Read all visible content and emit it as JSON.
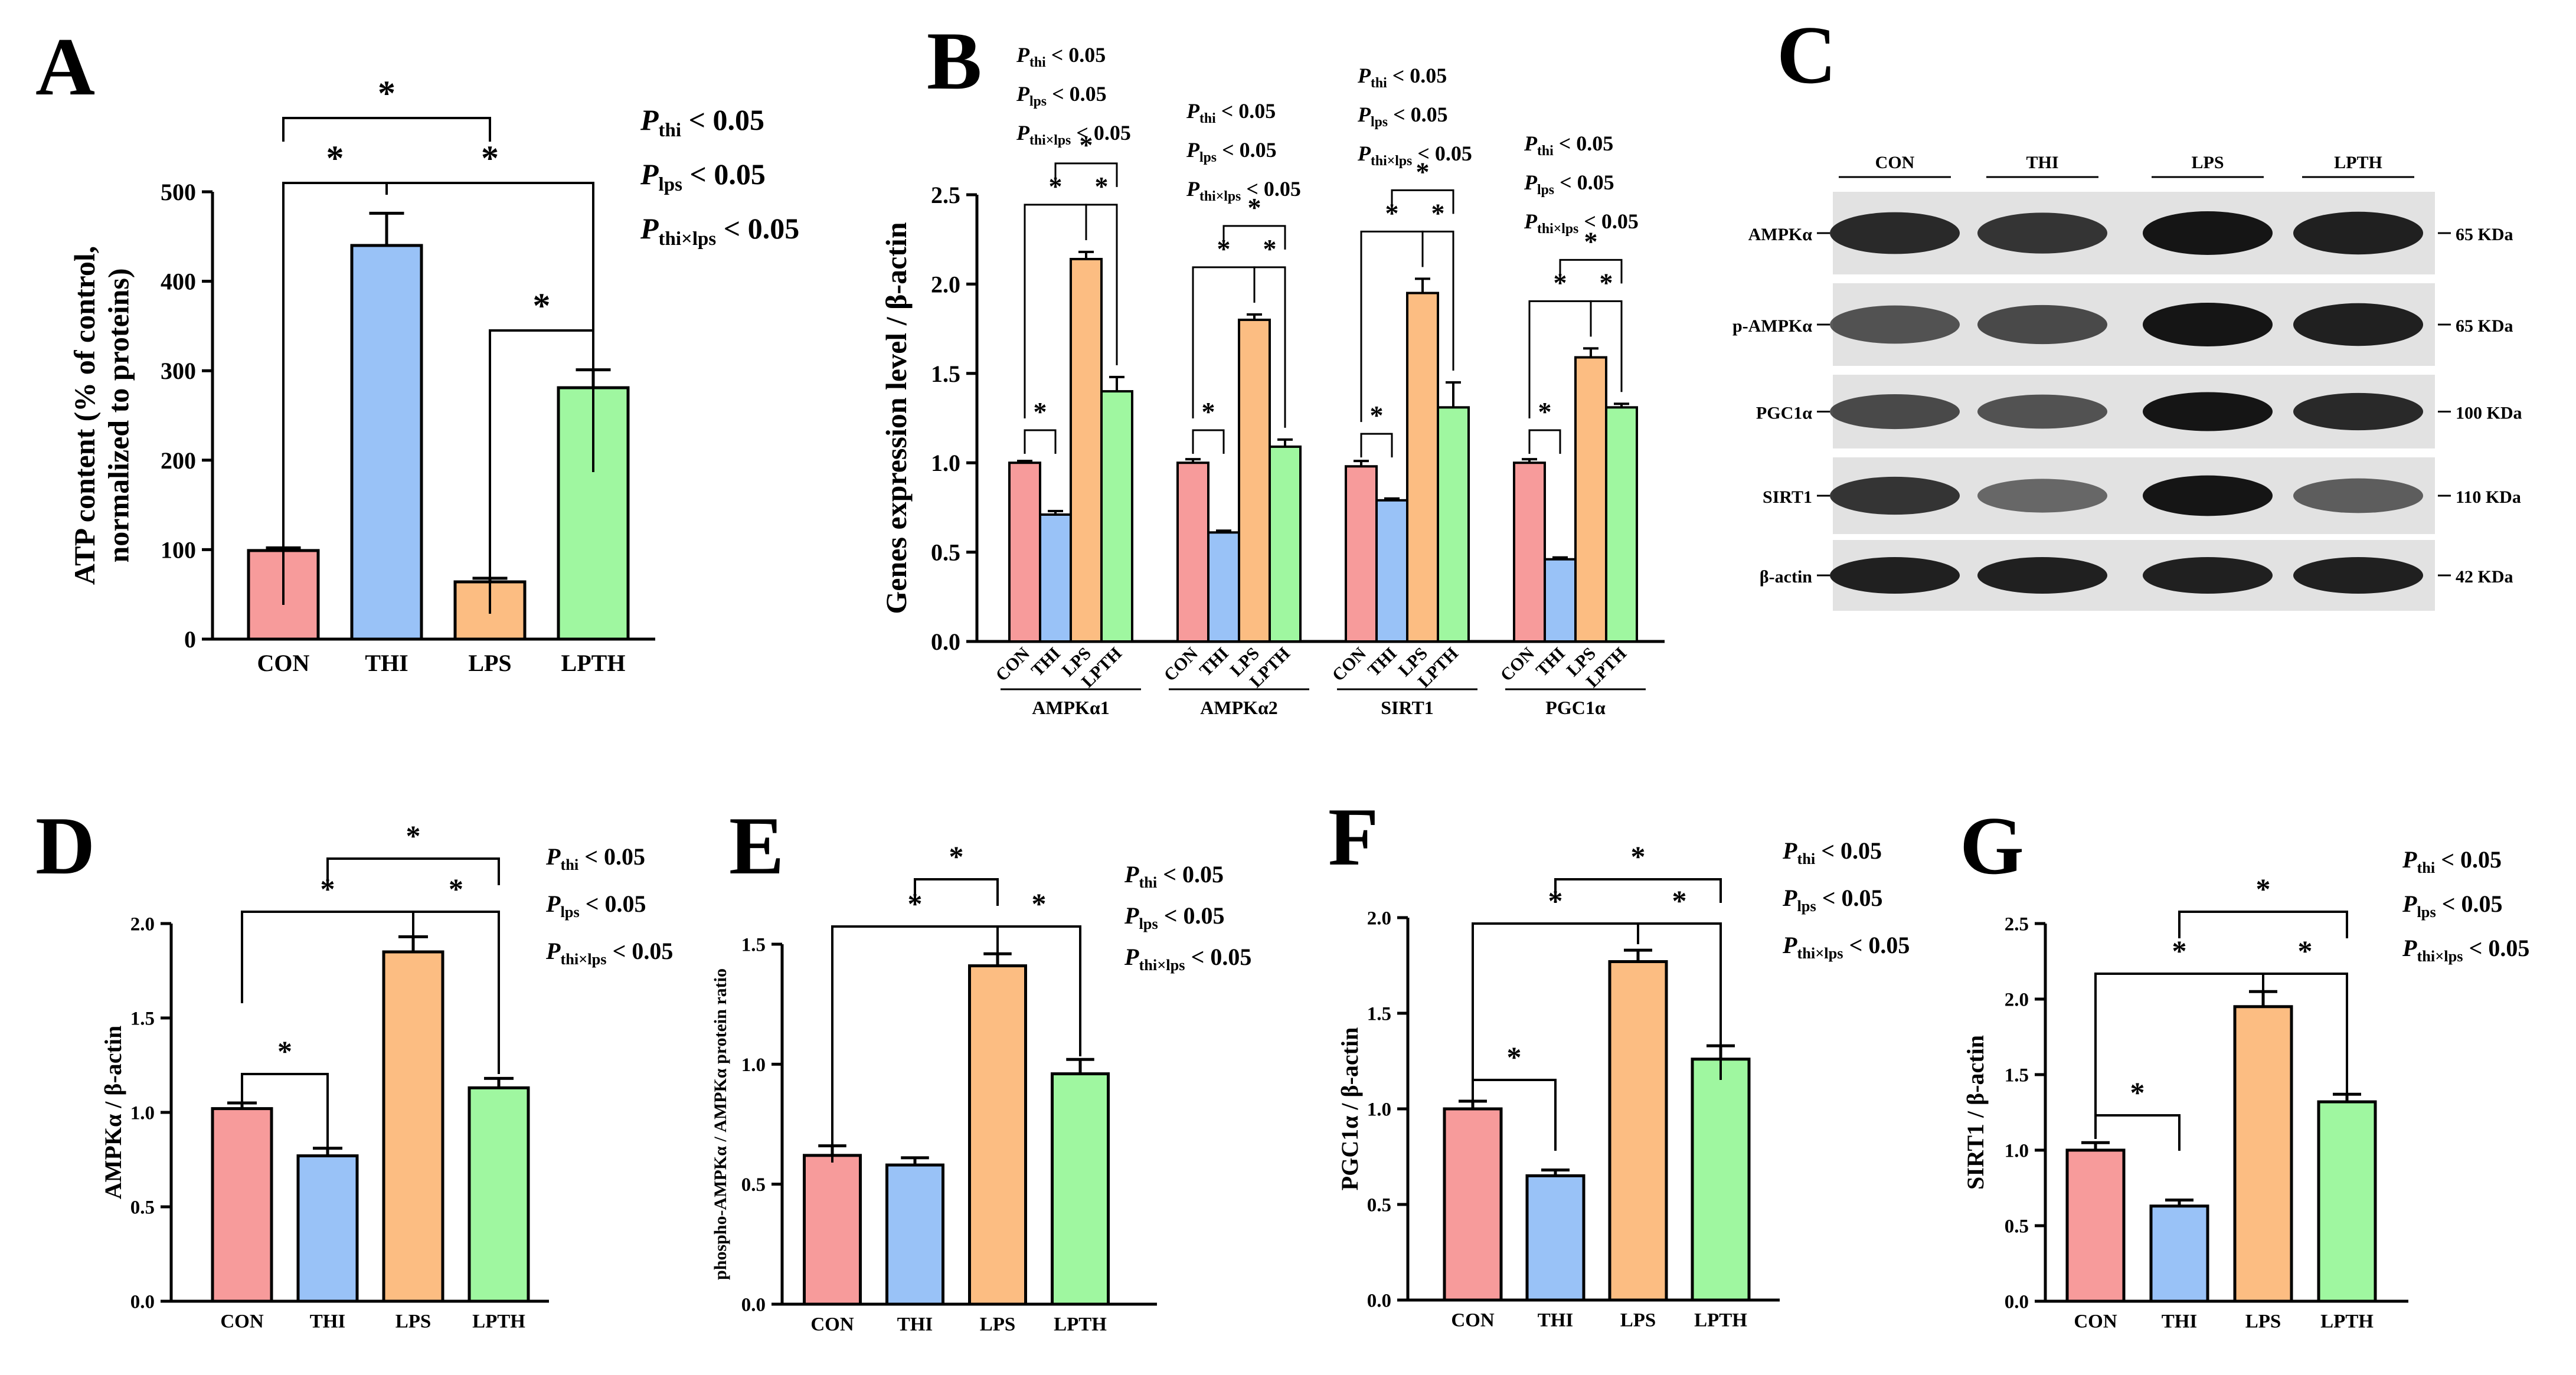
{
  "colors": {
    "CON": "#f79b9b",
    "THI": "#99c2f7",
    "LPS": "#fcbd82",
    "LPTH": "#9ff7a0",
    "axis": "#000000",
    "band_bg": "#e2e2e2",
    "band": "#151515"
  },
  "panels": {
    "A": {
      "letter": "A"
    },
    "B": {
      "letter": "B"
    },
    "C": {
      "letter": "C"
    },
    "D": {
      "letter": "D"
    },
    "E": {
      "letter": "E"
    },
    "F": {
      "letter": "F"
    },
    "G": {
      "letter": "G"
    }
  },
  "stats": {
    "lines": [
      {
        "p": "P",
        "sub": "thi",
        "tail": " < 0.05"
      },
      {
        "p": "P",
        "sub": "lps",
        "tail": " < 0.05"
      },
      {
        "p": "P",
        "sub": "thi×lps",
        "tail": " < 0.05"
      }
    ]
  },
  "chart_data": [
    {
      "id": "A",
      "type": "bar",
      "title": "",
      "ylabel": "ATP content (% of control, normalized to proteins)",
      "categories": [
        "CON",
        "THI",
        "LPS",
        "LPTH"
      ],
      "values": [
        99,
        440,
        64,
        281
      ],
      "errors": [
        3,
        36,
        4,
        20
      ],
      "ylim": [
        0,
        500
      ],
      "yticks": [
        0,
        100,
        200,
        300,
        400,
        500
      ],
      "significance": [
        {
          "from": 0,
          "to": 2,
          "label": "*"
        },
        {
          "from": 0,
          "to": 1,
          "label": "*"
        },
        {
          "from": 1,
          "to": 3,
          "label": "*"
        },
        {
          "from": 2,
          "to": 3,
          "label": "*"
        }
      ]
    },
    {
      "id": "B",
      "type": "bar",
      "ylabel": "Genes expression level / β-actin",
      "groups": [
        "AMPKα1",
        "AMPKα2",
        "SIRT1",
        "PGC1α"
      ],
      "categories": [
        "CON",
        "THI",
        "LPS",
        "LPTH"
      ],
      "series": [
        {
          "name": "CON",
          "values": [
            1.0,
            1.0,
            0.98,
            1.0
          ],
          "errors": [
            0.01,
            0.02,
            0.03,
            0.02
          ]
        },
        {
          "name": "THI",
          "values": [
            0.71,
            0.61,
            0.79,
            0.46
          ],
          "errors": [
            0.02,
            0.01,
            0.01,
            0.01
          ]
        },
        {
          "name": "LPS",
          "values": [
            2.14,
            1.8,
            1.95,
            1.59
          ],
          "errors": [
            0.04,
            0.03,
            0.08,
            0.05
          ]
        },
        {
          "name": "LPTH",
          "values": [
            1.4,
            1.09,
            1.31,
            1.31
          ],
          "errors": [
            0.08,
            0.04,
            0.14,
            0.02
          ]
        }
      ],
      "ylim": [
        0,
        2.5
      ],
      "yticks": [
        "0.0",
        "0.5",
        "1.0",
        "1.5",
        "2.0",
        "2.5"
      ]
    },
    {
      "id": "D",
      "type": "bar",
      "ylabel": "AMPKα / β-actin",
      "categories": [
        "CON",
        "THI",
        "LPS",
        "LPTH"
      ],
      "values": [
        1.02,
        0.77,
        1.85,
        1.13
      ],
      "errors": [
        0.03,
        0.04,
        0.08,
        0.05
      ],
      "ylim": [
        0,
        2.0
      ],
      "yticks": [
        "0.0",
        "0.5",
        "1.0",
        "1.5",
        "2.0"
      ]
    },
    {
      "id": "E",
      "type": "bar",
      "ylabel": "phospho-AMPKα / AMPKα protein ratio",
      "categories": [
        "CON",
        "THI",
        "LPS",
        "LPTH"
      ],
      "values": [
        0.62,
        0.58,
        1.41,
        0.96
      ],
      "errors": [
        0.04,
        0.03,
        0.05,
        0.06
      ],
      "ylim": [
        0,
        1.5
      ],
      "yticks": [
        "0.0",
        "0.5",
        "1.0",
        "1.5"
      ]
    },
    {
      "id": "F",
      "type": "bar",
      "ylabel": "PGC1α / β-actin",
      "categories": [
        "CON",
        "THI",
        "LPS",
        "LPTH"
      ],
      "values": [
        1.0,
        0.65,
        1.77,
        1.26
      ],
      "errors": [
        0.04,
        0.03,
        0.06,
        0.07
      ],
      "ylim": [
        0,
        2.0
      ],
      "yticks": [
        "0.0",
        "0.5",
        "1.0",
        "1.5",
        "2.0"
      ]
    },
    {
      "id": "G",
      "type": "bar",
      "ylabel": "SIRT1 / β-actin",
      "categories": [
        "CON",
        "THI",
        "LPS",
        "LPTH"
      ],
      "values": [
        1.0,
        0.63,
        1.95,
        1.32
      ],
      "errors": [
        0.05,
        0.04,
        0.1,
        0.05
      ],
      "ylim": [
        0,
        2.5
      ],
      "yticks": [
        "0.0",
        "0.5",
        "1.0",
        "1.5",
        "2.0",
        "2.5"
      ]
    }
  ],
  "blot": {
    "lanes": [
      "CON",
      "THI",
      "LPS",
      "LPTH"
    ],
    "rows": [
      {
        "label": "AMPKα",
        "size": "65 KDa"
      },
      {
        "label": "p-AMPKα",
        "size": "65 KDa"
      },
      {
        "label": "PGC1α",
        "size": "100 KDa"
      },
      {
        "label": "SIRT1",
        "size": "110 KDa"
      },
      {
        "label": "β-actin",
        "size": "42 KDa"
      }
    ]
  }
}
